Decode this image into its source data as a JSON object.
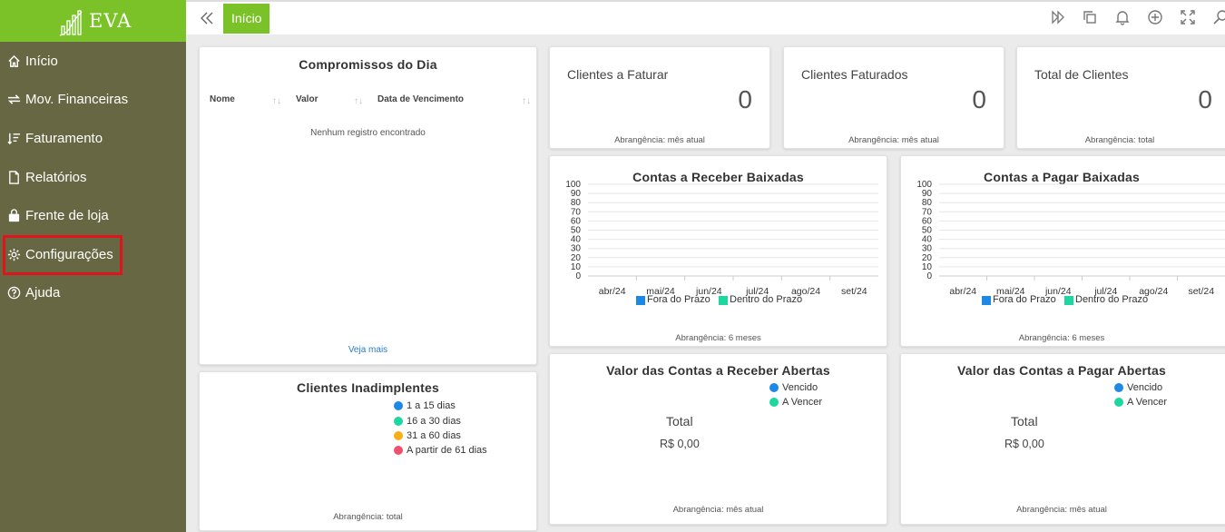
{
  "app": {
    "logo_text": "EVA"
  },
  "sidebar": {
    "items": [
      {
        "label": "Início",
        "icon": "home-icon"
      },
      {
        "label": "Mov. Financeiras",
        "icon": "transfer-icon"
      },
      {
        "label": "Faturamento",
        "icon": "sort-list-icon"
      },
      {
        "label": "Relatórios",
        "icon": "document-icon"
      },
      {
        "label": "Frente de loja",
        "icon": "shopping-bag-icon"
      },
      {
        "label": "Configurações",
        "icon": "gear-icon"
      },
      {
        "label": "Ajuda",
        "icon": "help-circle-icon"
      }
    ],
    "highlighted": "Configurações"
  },
  "topbar": {
    "active_tab": "Início",
    "icons": [
      "collapse-left-icon",
      "forward-icon",
      "copy-icon",
      "bell-icon",
      "add-circle-icon",
      "fullscreen-icon",
      "search-icon"
    ]
  },
  "compromissos": {
    "title": "Compromissos do Dia",
    "columns": [
      "Nome",
      "Valor",
      "Data de Vencimento"
    ],
    "empty_message": "Nenhum registro encontrado",
    "more_link": "Veja mais"
  },
  "kpis": [
    {
      "title": "Clientes a Faturar",
      "value": "0",
      "footer": "Abrangência: mês atual"
    },
    {
      "title": "Clientes Faturados",
      "value": "0",
      "footer": "Abrangência: mês atual"
    },
    {
      "title": "Total de Clientes",
      "value": "0",
      "footer": "Abrangência: total"
    }
  ],
  "charts": {
    "receber": {
      "title": "Contas a Receber Baixadas",
      "footer": "Abrangência: 6 meses"
    },
    "pagar": {
      "title": "Contas a Pagar Baixadas",
      "footer": "Abrangência: 6 meses"
    },
    "legend": [
      {
        "label": "Fora do Prazo",
        "color": "#1e88e5"
      },
      {
        "label": "Dentro do Prazo",
        "color": "#1ed6a0"
      }
    ]
  },
  "chart_data": [
    {
      "type": "bar",
      "title": "Contas a Receber Baixadas",
      "categories": [
        "abr/24",
        "mai/24",
        "jun/24",
        "jul/24",
        "ago/24",
        "set/24"
      ],
      "series": [
        {
          "name": "Fora do Prazo",
          "values": [
            0,
            0,
            0,
            0,
            0,
            0
          ]
        },
        {
          "name": "Dentro do Prazo",
          "values": [
            0,
            0,
            0,
            0,
            0,
            0
          ]
        }
      ],
      "yticks": [
        0,
        10,
        20,
        30,
        40,
        50,
        60,
        70,
        80,
        90,
        100
      ],
      "ylim": [
        0,
        100
      ],
      "grid": true,
      "legend": "bottom"
    },
    {
      "type": "bar",
      "title": "Contas a Pagar Baixadas",
      "categories": [
        "abr/24",
        "mai/24",
        "jun/24",
        "jul/24",
        "ago/24",
        "set/24"
      ],
      "series": [
        {
          "name": "Fora do Prazo",
          "values": [
            0,
            0,
            0,
            0,
            0,
            0
          ]
        },
        {
          "name": "Dentro do Prazo",
          "values": [
            0,
            0,
            0,
            0,
            0,
            0
          ]
        }
      ],
      "yticks": [
        0,
        10,
        20,
        30,
        40,
        50,
        60,
        70,
        80,
        90,
        100
      ],
      "ylim": [
        0,
        100
      ],
      "grid": true,
      "legend": "bottom"
    }
  ],
  "inadimplentes": {
    "title": "Clientes Inadimplentes",
    "legend": [
      {
        "label": "1 a 15 dias",
        "color": "#1e88e5"
      },
      {
        "label": "16 a 30 dias",
        "color": "#1ed6a0"
      },
      {
        "label": "31 a 60 dias",
        "color": "#f5b014"
      },
      {
        "label": "A partir de 61 dias",
        "color": "#f0506e"
      }
    ],
    "footer": "Abrangência: total"
  },
  "abertas": {
    "receber": {
      "title": "Valor das Contas a Receber Abertas",
      "legend": [
        {
          "label": "Vencido",
          "color": "#1e88e5"
        },
        {
          "label": "A Vencer",
          "color": "#1ed6a0"
        }
      ],
      "total_label": "Total",
      "total_value": "R$ 0,00",
      "footer": "Abrangência: mês atual"
    },
    "pagar": {
      "title": "Valor das Contas a Pagar Abertas",
      "legend": [
        {
          "label": "Vencido",
          "color": "#1e88e5"
        },
        {
          "label": "A Vencer",
          "color": "#1ed6a0"
        }
      ],
      "total_label": "Total",
      "total_value": "R$ 0,00",
      "footer": "Abrangência: mês atual"
    }
  }
}
